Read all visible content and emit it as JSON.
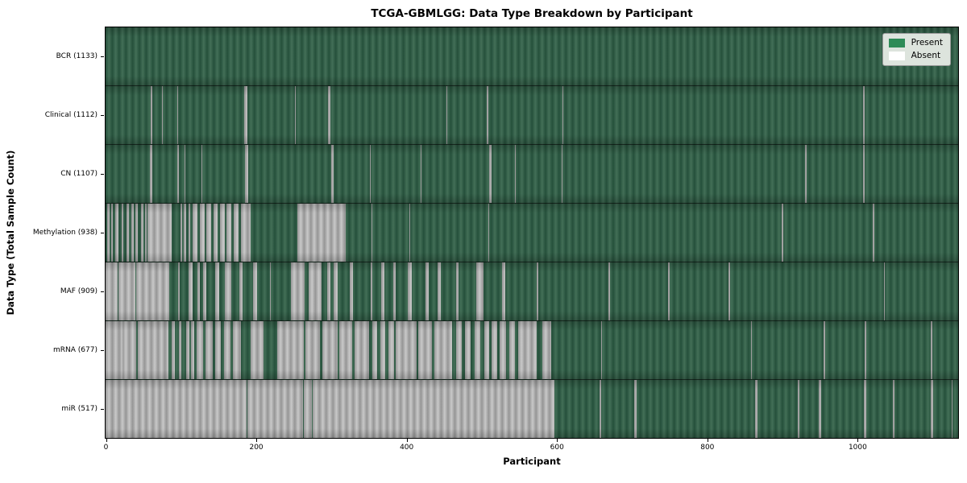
{
  "title": "TCGA-GBMLGG: Data Type Breakdown by Participant",
  "chart_data": {
    "type": "heatmap",
    "title": "TCGA-GBMLGG: Data Type Breakdown by Participant",
    "xlabel": "Participant",
    "ylabel": "Data Type (Total Sample Count)",
    "x_ticks": [
      0,
      200,
      400,
      600,
      800,
      1000
    ],
    "x_max": 1133,
    "total_participants": 1133,
    "grid": false,
    "legend": {
      "position": "upper right",
      "items": [
        {
          "label": "Present",
          "color": "#2e8b57"
        },
        {
          "label": "Absent",
          "color": "#ffffff"
        }
      ]
    },
    "colors": {
      "present": "#2e8b57",
      "absent": "#ffffff"
    },
    "encoding_note": "Each row lists absent participant-index ranges [start,end] inclusive; all other participants 0-1132 are present.",
    "rows": [
      {
        "name": "BCR",
        "present_count": 1133,
        "label": "BCR (1133)",
        "absent_ranges": []
      },
      {
        "name": "Clinical",
        "present_count": 1112,
        "label": "Clinical (1112)",
        "absent_ranges": [
          [
            60,
            61
          ],
          [
            75,
            75
          ],
          [
            95,
            95
          ],
          [
            184,
            188
          ],
          [
            252,
            252
          ],
          [
            296,
            298
          ],
          [
            415,
            415
          ],
          [
            453,
            453
          ],
          [
            506,
            508
          ],
          [
            607,
            607
          ],
          [
            1007,
            1008
          ]
        ]
      },
      {
        "name": "CN",
        "present_count": 1107,
        "label": "CN (1107)",
        "absent_ranges": [
          [
            59,
            61
          ],
          [
            95,
            96
          ],
          [
            105,
            105
          ],
          [
            127,
            127
          ],
          [
            185,
            189
          ],
          [
            300,
            302
          ],
          [
            351,
            351
          ],
          [
            419,
            419
          ],
          [
            510,
            512
          ],
          [
            544,
            544
          ],
          [
            606,
            606
          ],
          [
            930,
            931
          ],
          [
            1007,
            1008
          ]
        ]
      },
      {
        "name": "Methylation",
        "present_count": 938,
        "label": "Methylation (938)",
        "absent_ranges": [
          [
            2,
            4
          ],
          [
            8,
            9
          ],
          [
            13,
            16
          ],
          [
            21,
            23
          ],
          [
            28,
            30
          ],
          [
            34,
            36
          ],
          [
            40,
            42
          ],
          [
            47,
            49
          ],
          [
            52,
            54
          ],
          [
            56,
            87
          ],
          [
            100,
            101
          ],
          [
            104,
            106
          ],
          [
            110,
            111
          ],
          [
            116,
            121
          ],
          [
            125,
            131
          ],
          [
            134,
            139
          ],
          [
            143,
            148
          ],
          [
            152,
            158
          ],
          [
            161,
            166
          ],
          [
            170,
            176
          ],
          [
            180,
            192
          ],
          [
            255,
            318
          ],
          [
            353,
            353
          ],
          [
            404,
            404
          ],
          [
            509,
            509
          ],
          [
            899,
            900
          ],
          [
            1020,
            1021
          ]
        ]
      },
      {
        "name": "MAF",
        "present_count": 909,
        "label": "MAF (909)",
        "absent_ranges": [
          [
            0,
            15
          ],
          [
            17,
            39
          ],
          [
            41,
            84
          ],
          [
            96,
            97
          ],
          [
            110,
            115
          ],
          [
            122,
            124
          ],
          [
            130,
            133
          ],
          [
            146,
            150
          ],
          [
            158,
            166
          ],
          [
            178,
            181
          ],
          [
            196,
            200
          ],
          [
            218,
            219
          ],
          [
            246,
            263
          ],
          [
            270,
            286
          ],
          [
            295,
            298
          ],
          [
            303,
            307
          ],
          [
            324,
            328
          ],
          [
            352,
            354
          ],
          [
            366,
            370
          ],
          [
            382,
            385
          ],
          [
            402,
            406
          ],
          [
            425,
            428
          ],
          [
            441,
            445
          ],
          [
            466,
            468
          ],
          [
            493,
            501
          ],
          [
            527,
            530
          ],
          [
            573,
            574
          ],
          [
            668,
            669
          ],
          [
            748,
            749
          ],
          [
            828,
            829
          ],
          [
            1034,
            1035
          ]
        ]
      },
      {
        "name": "mRNA",
        "present_count": 677,
        "label": "mRNA (677)",
        "absent_ranges": [
          [
            0,
            21
          ],
          [
            23,
            40
          ],
          [
            43,
            83
          ],
          [
            88,
            91
          ],
          [
            97,
            100
          ],
          [
            107,
            110
          ],
          [
            113,
            117
          ],
          [
            121,
            129
          ],
          [
            133,
            141
          ],
          [
            146,
            152
          ],
          [
            157,
            165
          ],
          [
            169,
            179
          ],
          [
            193,
            209
          ],
          [
            228,
            262
          ],
          [
            266,
            284
          ],
          [
            288,
            307
          ],
          [
            311,
            327
          ],
          [
            331,
            349
          ],
          [
            354,
            360
          ],
          [
            365,
            371
          ],
          [
            376,
            382
          ],
          [
            386,
            412
          ],
          [
            416,
            433
          ],
          [
            437,
            459
          ],
          [
            466,
            472
          ],
          [
            478,
            484
          ],
          [
            490,
            497
          ],
          [
            503,
            509
          ],
          [
            513,
            519
          ],
          [
            524,
            531
          ],
          [
            536,
            543
          ],
          [
            548,
            572
          ],
          [
            580,
            591
          ],
          [
            659,
            659
          ],
          [
            858,
            858
          ],
          [
            954,
            955
          ],
          [
            1009,
            1010
          ],
          [
            1097,
            1098
          ]
        ]
      },
      {
        "name": "miR",
        "present_count": 517,
        "label": "miR (517)",
        "absent_ranges": [
          [
            0,
            186
          ],
          [
            189,
            261
          ],
          [
            263,
            273
          ],
          [
            275,
            595
          ],
          [
            656,
            658
          ],
          [
            703,
            705
          ],
          [
            863,
            865
          ],
          [
            920,
            921
          ],
          [
            948,
            950
          ],
          [
            1008,
            1010
          ],
          [
            1046,
            1047
          ],
          [
            1097,
            1099
          ],
          [
            1124,
            1125
          ]
        ]
      }
    ]
  }
}
